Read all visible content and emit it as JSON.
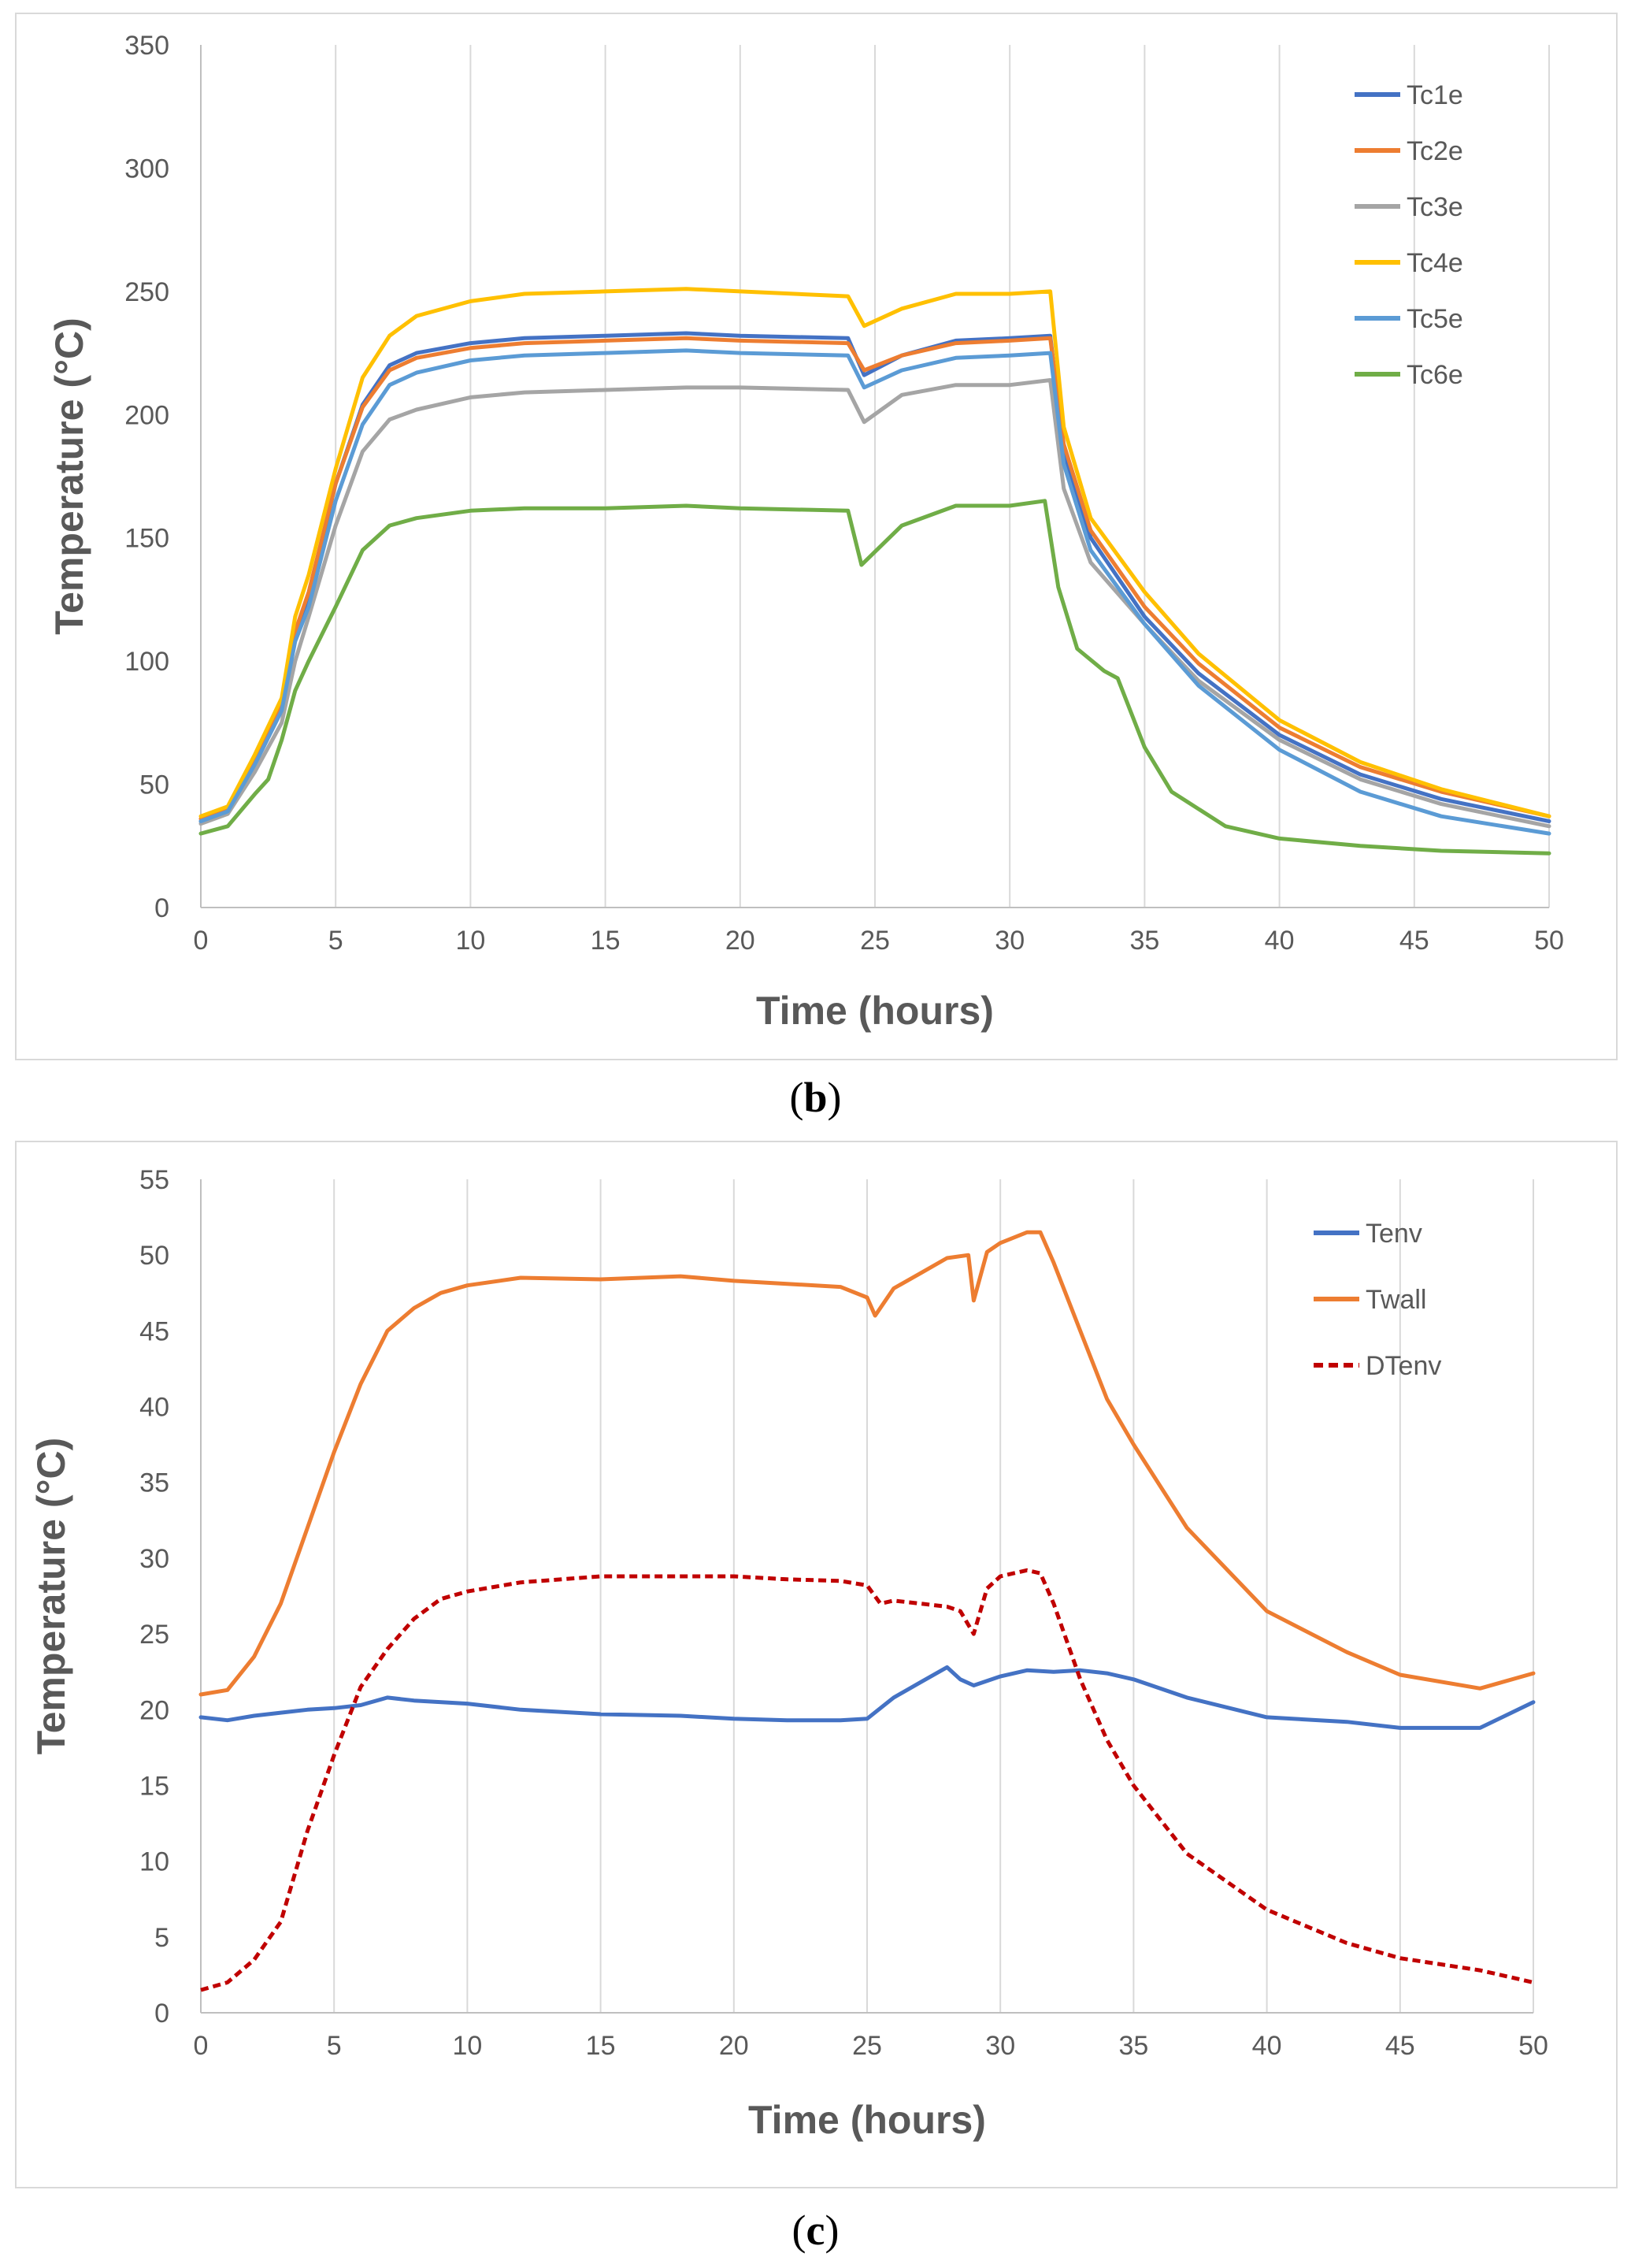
{
  "chart_data": [
    {
      "panel": "b",
      "type": "line",
      "caption": "b",
      "xlabel": "Time (hours)",
      "ylabel": "Temperature (°C)",
      "xlim": [
        0,
        50
      ],
      "ylim": [
        0,
        350
      ],
      "xticks": [
        0,
        5,
        10,
        15,
        20,
        25,
        30,
        35,
        40,
        45,
        50
      ],
      "yticks": [
        0,
        50,
        100,
        150,
        200,
        250,
        300,
        350
      ],
      "grid": "vertical",
      "legend": "top-right",
      "series": [
        {
          "name": "Tc1e",
          "color": "#4472c4",
          "style": "solid",
          "x": [
            0,
            1,
            2,
            3,
            3.5,
            4,
            5,
            6,
            7,
            8,
            10,
            12,
            15,
            18,
            20,
            24,
            24.6,
            26,
            28,
            30,
            31.5,
            32,
            33,
            35,
            37,
            40,
            43,
            46,
            50
          ],
          "y": [
            35,
            39,
            58,
            80,
            110,
            126,
            172,
            204,
            220,
            225,
            229,
            231,
            232,
            233,
            232,
            231,
            216,
            224,
            230,
            231,
            232,
            185,
            150,
            118,
            95,
            70,
            54,
            44,
            35
          ]
        },
        {
          "name": "Tc2e",
          "color": "#ed7d31",
          "style": "solid",
          "x": [
            0,
            1,
            2,
            3,
            3.5,
            4,
            5,
            6,
            7,
            8,
            10,
            12,
            15,
            18,
            20,
            24,
            24.6,
            26,
            28,
            30,
            31.5,
            32,
            33,
            35,
            37,
            40,
            43,
            46,
            50
          ],
          "y": [
            36,
            40,
            60,
            82,
            112,
            128,
            172,
            203,
            218,
            223,
            227,
            229,
            230,
            231,
            230,
            229,
            218,
            224,
            229,
            230,
            231,
            188,
            153,
            122,
            99,
            73,
            57,
            47,
            37
          ]
        },
        {
          "name": "Tc3e",
          "color": "#a5a5a5",
          "style": "solid",
          "x": [
            0,
            1,
            2,
            3,
            3.5,
            4,
            5,
            6,
            7,
            8,
            10,
            12,
            15,
            18,
            20,
            24,
            24.6,
            26,
            28,
            30,
            31.5,
            32,
            33,
            35,
            37,
            40,
            43,
            46,
            50
          ],
          "y": [
            34,
            38,
            55,
            75,
            100,
            118,
            155,
            185,
            198,
            202,
            207,
            209,
            210,
            211,
            211,
            210,
            197,
            208,
            212,
            212,
            214,
            170,
            140,
            115,
            92,
            68,
            52,
            42,
            33
          ]
        },
        {
          "name": "Tc4e",
          "color": "#ffc000",
          "style": "solid",
          "x": [
            0,
            1,
            2,
            3,
            3.5,
            4,
            5,
            6,
            7,
            8,
            10,
            12,
            15,
            18,
            20,
            24,
            24.6,
            26,
            28,
            30,
            31.5,
            32,
            33,
            35,
            37,
            40,
            43,
            46,
            50
          ],
          "y": [
            37,
            41,
            62,
            85,
            118,
            135,
            178,
            215,
            232,
            240,
            246,
            249,
            250,
            251,
            250,
            248,
            236,
            243,
            249,
            249,
            250,
            195,
            158,
            128,
            103,
            76,
            59,
            48,
            37
          ]
        },
        {
          "name": "Tc5e",
          "color": "#5b9bd5",
          "style": "solid",
          "x": [
            0,
            1,
            2,
            3,
            3.5,
            4,
            5,
            6,
            7,
            8,
            10,
            12,
            15,
            18,
            20,
            24,
            24.6,
            26,
            28,
            30,
            31.5,
            32,
            33,
            35,
            37,
            40,
            43,
            46,
            50
          ],
          "y": [
            35,
            39,
            58,
            80,
            108,
            122,
            165,
            196,
            212,
            217,
            222,
            224,
            225,
            226,
            225,
            224,
            211,
            218,
            223,
            224,
            225,
            180,
            145,
            115,
            90,
            64,
            47,
            37,
            30
          ]
        },
        {
          "name": "Tc6e",
          "color": "#70ad47",
          "style": "solid",
          "x": [
            0,
            1,
            2,
            2.5,
            3,
            3.5,
            4,
            5,
            6,
            7,
            8,
            10,
            12,
            15,
            18,
            20,
            24,
            24.5,
            26,
            28,
            30,
            31.3,
            31.8,
            32.5,
            33.5,
            34,
            35,
            36,
            38,
            40,
            43,
            46,
            50
          ],
          "y": [
            30,
            33,
            46,
            52,
            68,
            88,
            100,
            122,
            145,
            155,
            158,
            161,
            162,
            162,
            163,
            162,
            161,
            139,
            155,
            163,
            163,
            165,
            130,
            105,
            96,
            93,
            65,
            47,
            33,
            28,
            25,
            23,
            22
          ]
        }
      ]
    },
    {
      "panel": "c",
      "type": "line",
      "caption": "c",
      "xlabel": "Time (hours)",
      "ylabel": "Temperature (°C)",
      "xlim": [
        0,
        50
      ],
      "ylim": [
        0,
        55
      ],
      "xticks": [
        0,
        5,
        10,
        15,
        20,
        25,
        30,
        35,
        40,
        45,
        50
      ],
      "yticks": [
        0,
        5,
        10,
        15,
        20,
        25,
        30,
        35,
        40,
        45,
        50,
        55
      ],
      "grid": "vertical",
      "legend": "top-right",
      "series": [
        {
          "name": "Tenv",
          "color": "#4472c4",
          "style": "solid",
          "x": [
            0,
            1,
            2,
            3,
            4,
            5,
            6,
            7,
            8,
            10,
            12,
            15,
            18,
            20,
            22,
            24,
            25,
            26,
            27,
            28,
            28.5,
            29,
            30,
            31,
            32,
            33,
            34,
            35,
            37,
            40,
            43,
            45,
            48,
            50
          ],
          "y": [
            19.5,
            19.3,
            19.6,
            19.8,
            20.0,
            20.1,
            20.3,
            20.8,
            20.6,
            20.4,
            20.0,
            19.7,
            19.6,
            19.4,
            19.3,
            19.3,
            19.4,
            20.8,
            21.8,
            22.8,
            22.0,
            21.6,
            22.2,
            22.6,
            22.5,
            22.6,
            22.4,
            22.0,
            20.8,
            19.5,
            19.2,
            18.8,
            18.8,
            20.5
          ]
        },
        {
          "name": "Twall",
          "color": "#ed7d31",
          "style": "solid",
          "x": [
            0,
            1,
            2,
            3,
            4,
            5,
            6,
            7,
            8,
            9,
            10,
            12,
            15,
            18,
            20,
            22,
            24,
            25,
            25.3,
            26,
            27,
            28,
            28.8,
            29,
            29.5,
            30,
            31,
            31.5,
            32,
            33,
            34,
            35,
            37,
            40,
            43,
            45,
            48,
            50
          ],
          "y": [
            21.0,
            21.3,
            23.5,
            27.0,
            32.0,
            37.0,
            41.5,
            45.0,
            46.5,
            47.5,
            48.0,
            48.5,
            48.4,
            48.6,
            48.3,
            48.1,
            47.9,
            47.2,
            46.0,
            47.8,
            48.8,
            49.8,
            50.0,
            47.0,
            50.2,
            50.8,
            51.5,
            51.5,
            49.5,
            45.0,
            40.5,
            37.5,
            32.0,
            26.5,
            23.8,
            22.3,
            21.4,
            22.4
          ]
        },
        {
          "name": "DTenv",
          "color": "#c00000",
          "style": "dashed",
          "x": [
            0,
            1,
            2,
            3,
            4,
            5,
            6,
            7,
            8,
            9,
            10,
            12,
            15,
            18,
            20,
            22,
            24,
            25,
            25.5,
            26,
            27,
            28,
            28.5,
            29,
            29.5,
            30,
            31,
            31.5,
            32,
            33,
            34,
            35,
            37,
            40,
            43,
            45,
            48,
            50
          ],
          "y": [
            1.5,
            2.0,
            3.5,
            6.0,
            12.0,
            17.0,
            21.5,
            24.0,
            26.0,
            27.3,
            27.8,
            28.4,
            28.8,
            28.8,
            28.8,
            28.6,
            28.5,
            28.2,
            27.0,
            27.2,
            27.0,
            26.8,
            26.5,
            25.0,
            28.0,
            28.8,
            29.2,
            29.0,
            27.0,
            22.0,
            18.0,
            15.0,
            10.5,
            6.8,
            4.6,
            3.6,
            2.8,
            2.0
          ]
        }
      ]
    }
  ]
}
